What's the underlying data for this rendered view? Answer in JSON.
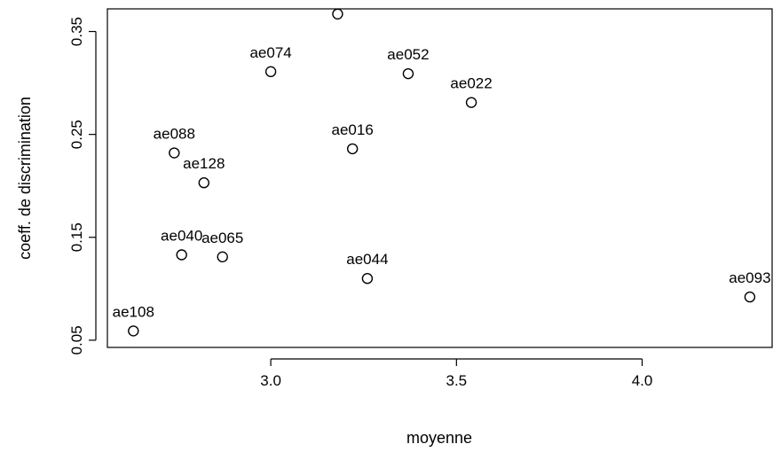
{
  "chart_data": {
    "type": "scatter",
    "title": "",
    "xlabel": "moyenne",
    "ylabel": "coeff. de discrimination",
    "xlim": [
      2.56,
      4.35
    ],
    "ylim": [
      0.043,
      0.372
    ],
    "xticks": [
      3.0,
      3.5,
      4.0
    ],
    "xtick_labels": [
      "3.0",
      "3.5",
      "4.0"
    ],
    "yticks": [
      0.05,
      0.15,
      0.25,
      0.35
    ],
    "ytick_labels": [
      "0.05",
      "0.15",
      "0.25",
      "0.35"
    ],
    "grid": false,
    "legend": "none",
    "marker": "open-circle",
    "point_color": "#000000",
    "points": [
      {
        "x": 3.18,
        "y": 0.367,
        "label": ""
      },
      {
        "x": 3.0,
        "y": 0.311,
        "label": "ae074"
      },
      {
        "x": 3.37,
        "y": 0.309,
        "label": "ae052"
      },
      {
        "x": 3.54,
        "y": 0.281,
        "label": "ae022"
      },
      {
        "x": 3.22,
        "y": 0.236,
        "label": "ae016"
      },
      {
        "x": 2.74,
        "y": 0.232,
        "label": "ae088"
      },
      {
        "x": 2.82,
        "y": 0.203,
        "label": "ae128"
      },
      {
        "x": 2.76,
        "y": 0.133,
        "label": "ae040"
      },
      {
        "x": 2.87,
        "y": 0.131,
        "label": "ae065"
      },
      {
        "x": 3.26,
        "y": 0.11,
        "label": "ae044"
      },
      {
        "x": 4.29,
        "y": 0.092,
        "label": "ae093"
      },
      {
        "x": 2.63,
        "y": 0.059,
        "label": "ae108"
      }
    ]
  }
}
